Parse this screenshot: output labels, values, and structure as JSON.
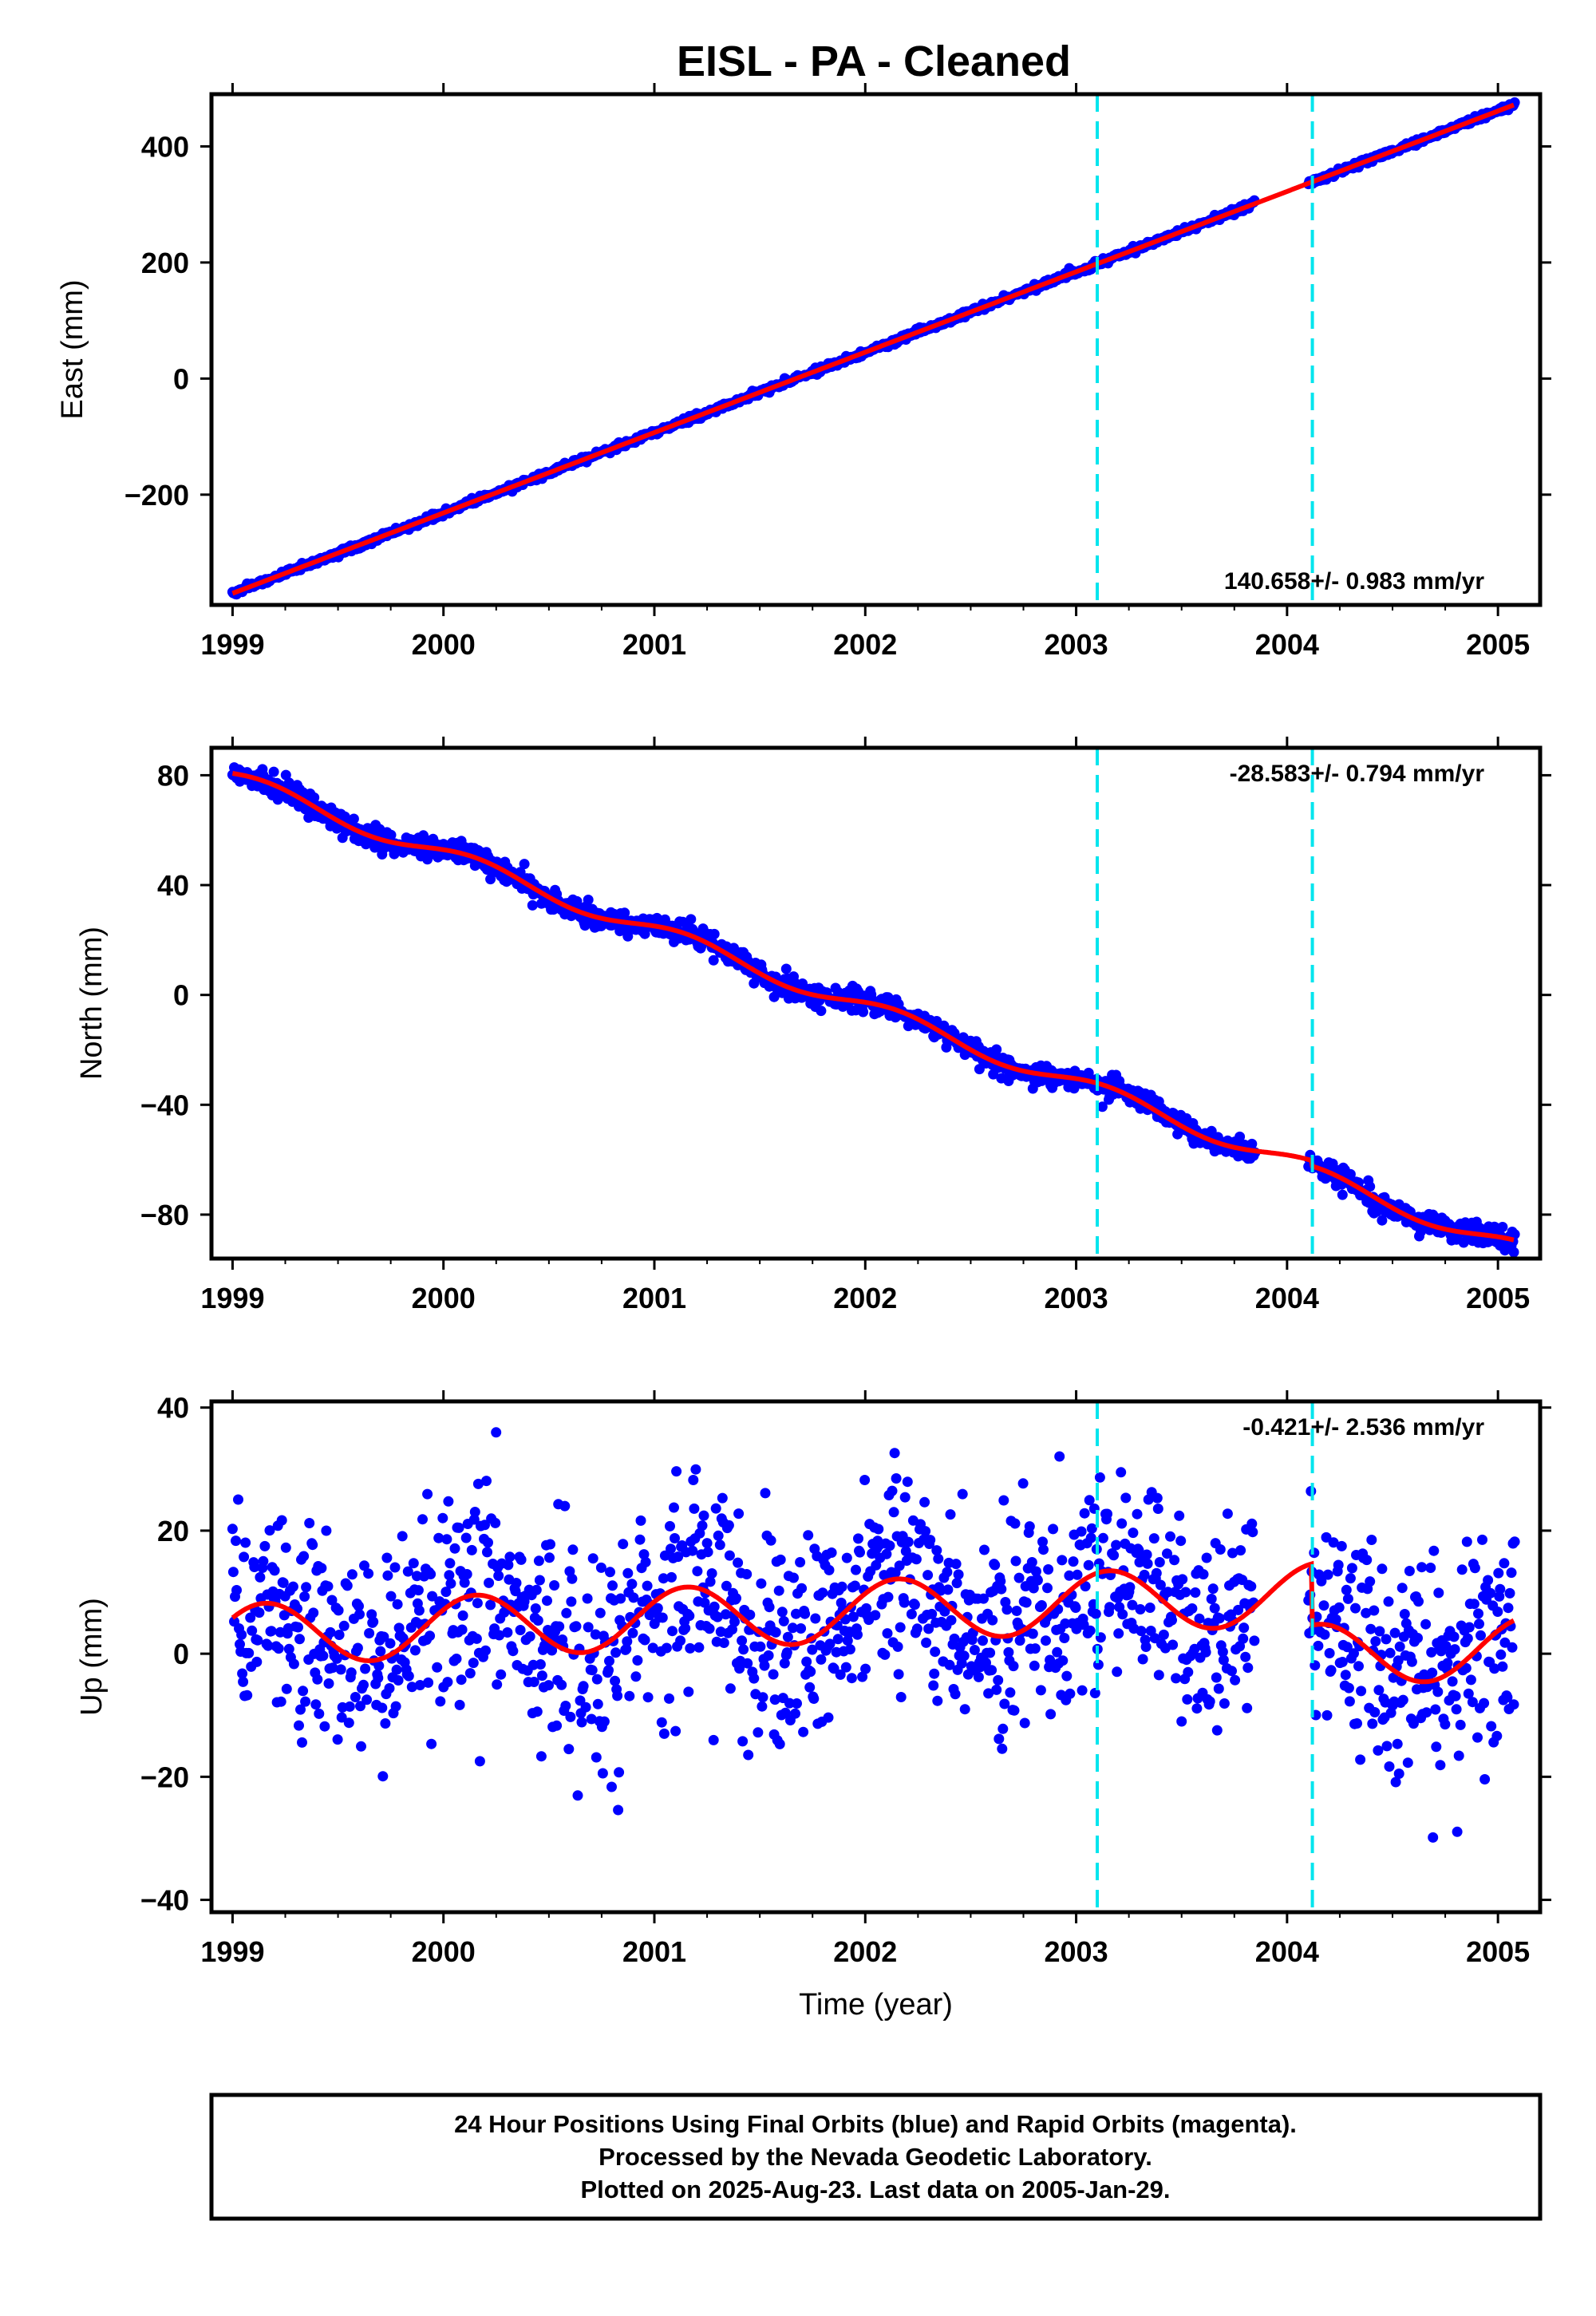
{
  "title": "EISL  - PA - Cleaned",
  "colors": {
    "points": "#0000ff",
    "model": "#ff0000",
    "breaks": "#00e5ee",
    "frame": "#000000"
  },
  "xaxis": {
    "label": "Time (year)",
    "range": [
      1998.9,
      2005.2
    ],
    "ticks": [
      1999,
      2000,
      2001,
      2002,
      2003,
      2004,
      2005
    ]
  },
  "breaks": [
    2003.1,
    2004.12
  ],
  "footer": {
    "line1": "24 Hour Positions Using Final Orbits (blue) and Rapid Orbits (magenta).",
    "line2": "Processed by the Nevada Geodetic Laboratory.",
    "line3": "Plotted on 2025-Aug-23. Last data on 2005-Jan-29."
  },
  "chart_data": [
    {
      "type": "scatter",
      "component": "east",
      "ylabel": "East (mm)",
      "ylim": [
        -390,
        490
      ],
      "yticks": [
        -200,
        0,
        200,
        400
      ],
      "rate": "140.658+/- 0.983 mm/yr",
      "rate_position": "bottom-right",
      "x_start": 1999.0,
      "x_end": 2005.08,
      "model": {
        "y_at_start": -370,
        "y_at_end": 472,
        "annual_amp": 0,
        "offset_at_break2": 0
      },
      "noise_sd": 2.5,
      "gap": [
        2003.85,
        2004.1
      ]
    },
    {
      "type": "scatter",
      "component": "north",
      "ylabel": "North (mm)",
      "ylim": [
        -96,
        90
      ],
      "yticks": [
        -80,
        -40,
        0,
        40,
        80
      ],
      "rate": "-28.583+/- 0.794 mm/yr",
      "rate_position": "top-right",
      "x_start": 1999.0,
      "x_end": 2005.08,
      "model": {
        "y_at_start": 79,
        "y_at_end": -92,
        "annual_amp": 3,
        "offset_at_break2": -2
      },
      "noise_sd": 2.0,
      "gap": [
        2003.85,
        2004.1
      ]
    },
    {
      "type": "scatter",
      "component": "up",
      "ylabel": "Up (mm)",
      "ylim": [
        -42,
        41
      ],
      "yticks": [
        -40,
        -20,
        0,
        20,
        40
      ],
      "rate": "-0.421+/- 2.536 mm/yr",
      "rate_position": "top-right",
      "x_start": 1999.0,
      "x_end": 2005.08,
      "model": {
        "y_at_start": 3,
        "y_at_end": 1,
        "annual_amp": 5,
        "offset_at_break2": -10
      },
      "noise_sd": 8.5,
      "gap": [
        2003.85,
        2004.1
      ]
    }
  ]
}
